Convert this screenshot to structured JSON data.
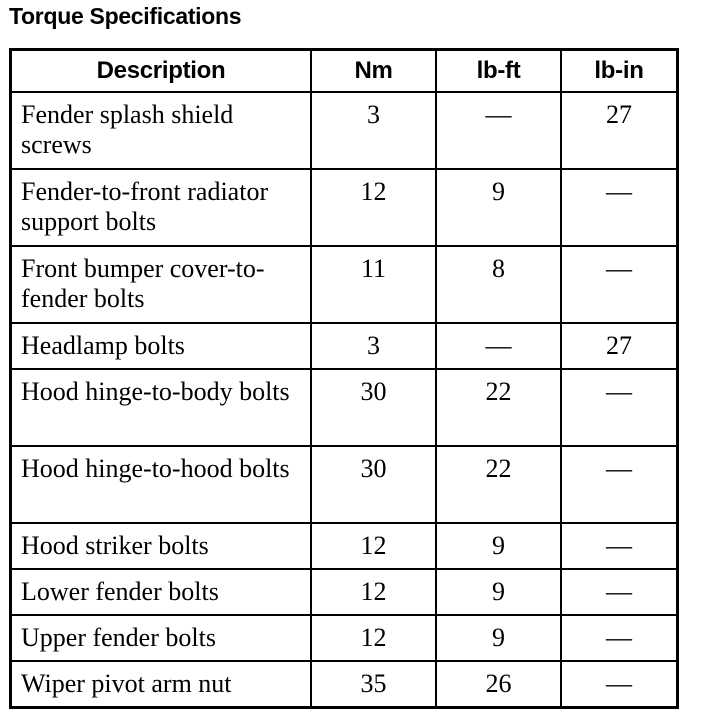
{
  "title": "Torque Specifications",
  "columns": [
    "Description",
    "Nm",
    "lb-ft",
    "lb-in"
  ],
  "rows": [
    {
      "description": "Fender splash shield screws",
      "nm": "3",
      "lbft": "—",
      "lbin": "27"
    },
    {
      "description": "Fender-to-front radiator support bolts",
      "nm": "12",
      "lbft": "9",
      "lbin": "—"
    },
    {
      "description": "Front bumper cover-to-fender bolts",
      "nm": "11",
      "lbft": "8",
      "lbin": "—"
    },
    {
      "description": "Headlamp bolts",
      "nm": "3",
      "lbft": "—",
      "lbin": "27"
    },
    {
      "description": "Hood hinge-to-body bolts",
      "nm": "30",
      "lbft": "22",
      "lbin": "—"
    },
    {
      "description": "Hood hinge-to-hood bolts",
      "nm": "30",
      "lbft": "22",
      "lbin": "—"
    },
    {
      "description": "Hood striker bolts",
      "nm": "12",
      "lbft": "9",
      "lbin": "—"
    },
    {
      "description": "Lower fender bolts",
      "nm": "12",
      "lbft": "9",
      "lbin": "—"
    },
    {
      "description": "Upper fender bolts",
      "nm": "12",
      "lbft": "9",
      "lbin": "—"
    },
    {
      "description": "Wiper pivot arm nut",
      "nm": "35",
      "lbft": "26",
      "lbin": "—"
    }
  ]
}
